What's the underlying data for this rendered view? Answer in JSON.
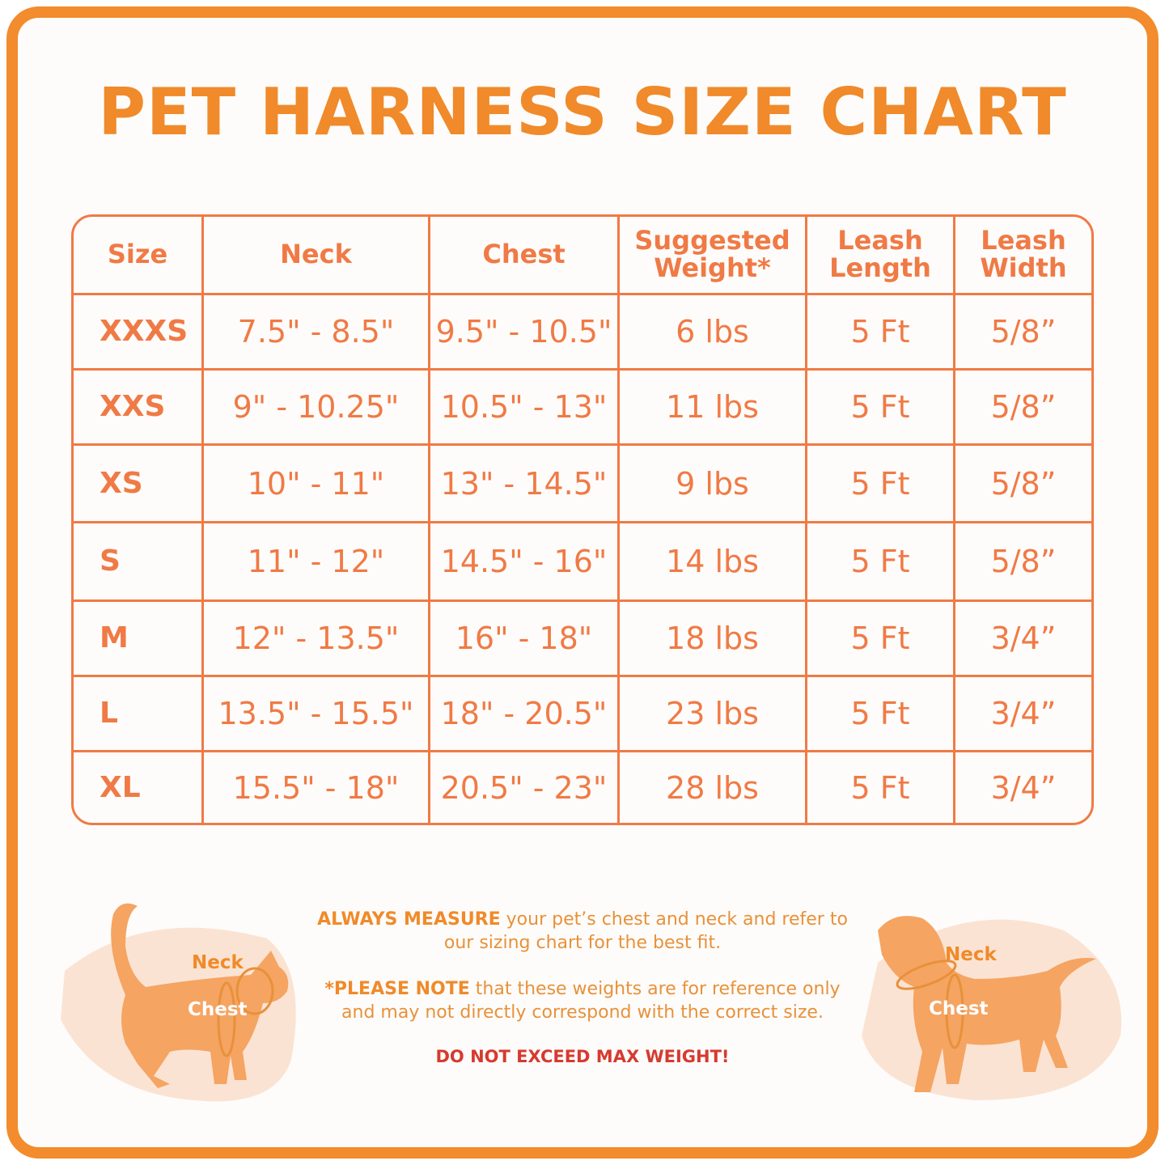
{
  "title": "PET HARNESS SIZE CHART",
  "table": {
    "headers": [
      "Size",
      "Neck",
      "Chest",
      "Suggested Weight*",
      "Leash Length",
      "Leash Width"
    ],
    "rows": [
      [
        "XXXS",
        "7.5\" - 8.5\"",
        "9.5\" - 10.5\"",
        "6 lbs",
        "5 Ft",
        "5/8”"
      ],
      [
        "XXS",
        "9\" - 10.25\"",
        "10.5\" - 13\"",
        "11 lbs",
        "5 Ft",
        "5/8”"
      ],
      [
        "XS",
        "10\" - 11\"",
        "13\" - 14.5\"",
        "9 lbs",
        "5 Ft",
        "5/8”"
      ],
      [
        "S",
        "11\" - 12\"",
        "14.5\" - 16\"",
        "14 lbs",
        "5 Ft",
        "5/8”"
      ],
      [
        "M",
        "12\" - 13.5\"",
        "16\" - 18\"",
        "18 lbs",
        "5 Ft",
        "3/4”"
      ],
      [
        "L",
        "13.5\" - 15.5\"",
        "18\" - 20.5\"",
        "23 lbs",
        "5 Ft",
        "3/4”"
      ],
      [
        "XL",
        "15.5\" - 18\"",
        "20.5\" - 23\"",
        "28 lbs",
        "5 Ft",
        "3/4”"
      ]
    ]
  },
  "notes": {
    "measure_bold": "ALWAYS MEASURE",
    "measure_text": " your pet’s chest and neck and refer to our sizing chart for the best fit.",
    "note_bold": "*PLEASE NOTE",
    "note_text": " that these weights are for reference only and may not directly correspond with the correct size.",
    "warning": "DO NOT EXCEED MAX WEIGHT!"
  },
  "cat": {
    "neck": "Neck",
    "chest": "Chest"
  },
  "dog": {
    "neck": "Neck",
    "chest": "Chest"
  },
  "colors": {
    "frame": "#f28c2c",
    "title": "#f08a2a",
    "table": "#f07a45",
    "warning": "#d63a30"
  }
}
